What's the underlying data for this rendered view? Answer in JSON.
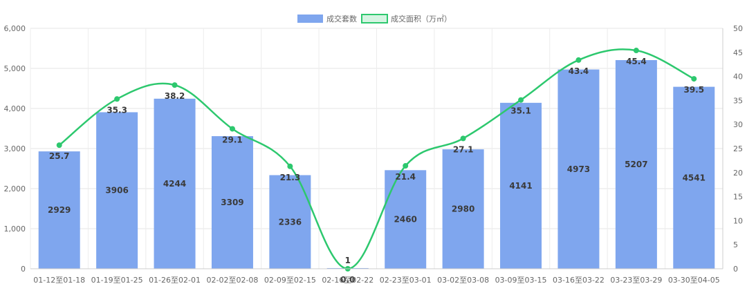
{
  "chart_data": {
    "type": "bar",
    "categories": [
      "01-12至01-18",
      "01-19至01-25",
      "01-26至02-01",
      "02-02至02-08",
      "02-09至02-15",
      "02-16至02-22",
      "02-23至03-01",
      "03-02至03-08",
      "03-09至03-15",
      "03-16至03-22",
      "03-23至03-29",
      "03-30至04-05"
    ],
    "series": [
      {
        "name": "成交套数",
        "type": "bar",
        "axis": "left",
        "color": "#7FA6EE",
        "values": [
          2929,
          3906,
          4244,
          3309,
          2336,
          1,
          2460,
          2980,
          4141,
          4973,
          5207,
          4541
        ],
        "labels": [
          "2929",
          "3906",
          "4244",
          "3309",
          "2336",
          "1",
          "2460",
          "2980",
          "4141",
          "4973",
          "5207",
          "4541"
        ]
      },
      {
        "name": "成交面积（万㎡）",
        "type": "line",
        "axis": "right",
        "color": "#2DC86E",
        "values": [
          25.7,
          35.3,
          38.2,
          29.1,
          21.3,
          0.0,
          21.4,
          27.1,
          35.1,
          43.4,
          45.4,
          39.5
        ],
        "labels": [
          "25.7",
          "35.3",
          "38.2",
          "29.1",
          "21.3",
          "0.0",
          "21.4",
          "27.1",
          "35.1",
          "43.4",
          "45.4",
          "39.5"
        ]
      }
    ],
    "y_left": {
      "min": 0,
      "max": 6000,
      "ticks": [
        "0",
        "1,000",
        "2,000",
        "3,000",
        "4,000",
        "5,000",
        "6,000"
      ]
    },
    "y_right": {
      "min": 0,
      "max": 50,
      "ticks": [
        "0",
        "5",
        "10",
        "15",
        "20",
        "25",
        "30",
        "35",
        "40",
        "45",
        "50"
      ]
    },
    "grid": true,
    "legend_position": "top-center",
    "title": "",
    "xlabel": "",
    "ylabel": ""
  }
}
